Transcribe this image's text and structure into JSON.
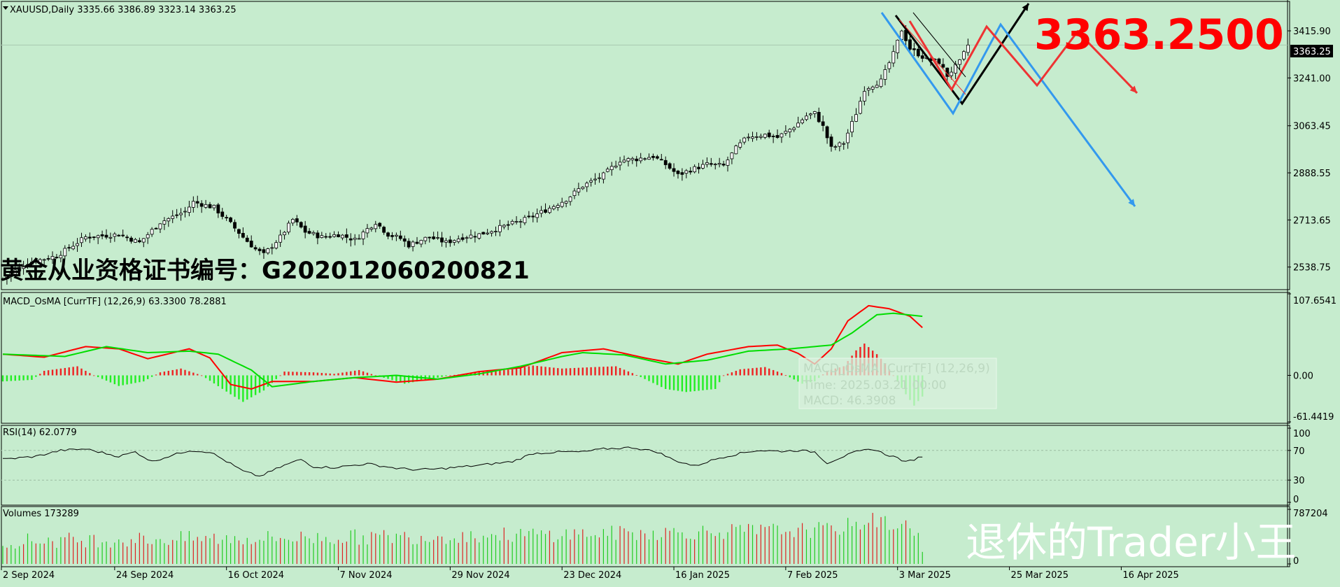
{
  "symbol_header": "XAUUSD,Daily  3335.66 3386.89 3323.14 3363.25",
  "big_price": "3363.2500",
  "certificate": "黄金从业资格证书编号：G202012060200821",
  "watermark": "退休的Trader小王",
  "colors": {
    "background": "#c6ecce",
    "bull_candle": "#ffffff",
    "bear_candle": "#000000",
    "macd_main": "#ff0000",
    "macd_signal": "#00dd00",
    "osma_pos": "#ee2222",
    "osma_neg": "#22ee22",
    "arrow_black": "#000000",
    "arrow_red": "#ee3333",
    "arrow_blue": "#3399ee",
    "big_price": "#ff0000"
  },
  "tooltip": {
    "line1": "MACD_OsMA [CurrTF] (12,26,9)",
    "line2": "Time: 2025.03.21 00:00",
    "line3": "MACD: 46.3908"
  },
  "chart_data": [
    {
      "type": "candlestick",
      "panel": "price",
      "title": "XAUUSD,Daily",
      "last_ohlc": {
        "open": 3335.66,
        "high": 3386.89,
        "low": 3323.14,
        "close": 3363.25
      },
      "current_price_label": "3363.25",
      "y_ticks": [
        "3415.90",
        "3241.00",
        "3063.45",
        "2888.55",
        "2713.65",
        "2538.75"
      ],
      "ylim": [
        2460,
        3520
      ],
      "x_date_labels": [
        "2 Sep 2024",
        "24 Sep 2024",
        "16 Oct 2024",
        "7 Nov 2024",
        "29 Nov 2024",
        "23 Dec 2024",
        "16 Jan 2025",
        "7 Feb 2025",
        "3 Mar 2025",
        "25 Mar 2025",
        "16 Apr 2025"
      ],
      "close_anchors": [
        [
          0,
          2495
        ],
        [
          6,
          2555
        ],
        [
          13,
          2580
        ],
        [
          20,
          2650
        ],
        [
          28,
          2660
        ],
        [
          33,
          2630
        ],
        [
          38,
          2705
        ],
        [
          44,
          2745
        ],
        [
          46,
          2780
        ],
        [
          51,
          2760
        ],
        [
          55,
          2700
        ],
        [
          58,
          2650
        ],
        [
          61,
          2605
        ],
        [
          63,
          2585
        ],
        [
          67,
          2650
        ],
        [
          70,
          2715
        ],
        [
          73,
          2670
        ],
        [
          77,
          2650
        ],
        [
          81,
          2660
        ],
        [
          85,
          2640
        ],
        [
          88,
          2680
        ],
        [
          90,
          2705
        ],
        [
          93,
          2660
        ],
        [
          96,
          2645
        ],
        [
          98,
          2620
        ],
        [
          101,
          2640
        ],
        [
          103,
          2650
        ],
        [
          107,
          2630
        ],
        [
          111,
          2650
        ],
        [
          115,
          2660
        ],
        [
          119,
          2680
        ],
        [
          123,
          2700
        ],
        [
          127,
          2720
        ],
        [
          131,
          2750
        ],
        [
          136,
          2790
        ],
        [
          140,
          2840
        ],
        [
          145,
          2880
        ],
        [
          149,
          2935
        ],
        [
          153,
          2940
        ],
        [
          157,
          2950
        ],
        [
          160,
          2920
        ],
        [
          163,
          2880
        ],
        [
          166,
          2900
        ],
        [
          170,
          2920
        ],
        [
          174,
          2915
        ],
        [
          177,
          2980
        ],
        [
          180,
          3025
        ],
        [
          184,
          3030
        ],
        [
          187,
          3020
        ],
        [
          191,
          3060
        ],
        [
          194,
          3100
        ],
        [
          196,
          3110
        ],
        [
          198,
          3060
        ],
        [
          200,
          2980
        ],
        [
          203,
          3000
        ],
        [
          206,
          3110
        ],
        [
          208,
          3200
        ],
        [
          212,
          3230
        ],
        [
          215,
          3330
        ],
        [
          217,
          3420
        ],
        [
          219,
          3350
        ],
        [
          223,
          3310
        ],
        [
          226,
          3300
        ],
        [
          228,
          3250
        ],
        [
          231,
          3300
        ],
        [
          233,
          3363
        ]
      ]
    },
    {
      "type": "line",
      "panel": "macd",
      "title": "MACD_OsMA [CurrTF] (12,26,9) 63.3300 78.2881",
      "y_ticks": [
        "107.6541",
        "0.00",
        "-61.4419"
      ],
      "ylim": [
        -61.4419,
        107.6541
      ],
      "series": [
        {
          "name": "MACD",
          "anchors": [
            [
              0,
              28
            ],
            [
              10,
              24
            ],
            [
              20,
              38
            ],
            [
              28,
              35
            ],
            [
              35,
              22
            ],
            [
              45,
              35
            ],
            [
              50,
              23
            ],
            [
              55,
              -12
            ],
            [
              60,
              -18
            ],
            [
              65,
              -8
            ],
            [
              75,
              -8
            ],
            [
              85,
              -3
            ],
            [
              95,
              -9
            ],
            [
              105,
              -5
            ],
            [
              115,
              5
            ],
            [
              125,
              10
            ],
            [
              135,
              30
            ],
            [
              145,
              35
            ],
            [
              155,
              23
            ],
            [
              163,
              15
            ],
            [
              170,
              28
            ],
            [
              180,
              38
            ],
            [
              187,
              40
            ],
            [
              192,
              29
            ],
            [
              196,
              15
            ],
            [
              200,
              35
            ],
            [
              204,
              72
            ],
            [
              209,
              92
            ],
            [
              214,
              88
            ],
            [
              219,
              78
            ],
            [
              222,
              63
            ]
          ]
        },
        {
          "name": "Signal",
          "anchors": [
            [
              0,
              28
            ],
            [
              15,
              25
            ],
            [
              25,
              38
            ],
            [
              35,
              30
            ],
            [
              45,
              32
            ],
            [
              52,
              28
            ],
            [
              60,
              7
            ],
            [
              65,
              -15
            ],
            [
              75,
              -8
            ],
            [
              85,
              -3
            ],
            [
              95,
              0
            ],
            [
              105,
              -5
            ],
            [
              115,
              2
            ],
            [
              125,
              12
            ],
            [
              135,
              25
            ],
            [
              140,
              30
            ],
            [
              150,
              27
            ],
            [
              160,
              15
            ],
            [
              170,
              20
            ],
            [
              180,
              32
            ],
            [
              190,
              35
            ],
            [
              200,
              40
            ],
            [
              205,
              56
            ],
            [
              211,
              80
            ],
            [
              215,
              82
            ],
            [
              222,
              78
            ]
          ]
        },
        {
          "name": "OsMA",
          "anchors": [
            [
              0,
              -8
            ],
            [
              7,
              -6
            ],
            [
              10,
              6
            ],
            [
              18,
              12
            ],
            [
              22,
              0
            ],
            [
              28,
              -14
            ],
            [
              34,
              -8
            ],
            [
              38,
              4
            ],
            [
              43,
              9
            ],
            [
              48,
              0
            ],
            [
              55,
              -25
            ],
            [
              58,
              -35
            ],
            [
              63,
              -20
            ],
            [
              68,
              5
            ],
            [
              75,
              4
            ],
            [
              80,
              2
            ],
            [
              86,
              7
            ],
            [
              90,
              0
            ],
            [
              97,
              -11
            ],
            [
              103,
              -5
            ],
            [
              108,
              0
            ],
            [
              115,
              4
            ],
            [
              123,
              8
            ],
            [
              128,
              13
            ],
            [
              135,
              9
            ],
            [
              143,
              11
            ],
            [
              148,
              12
            ],
            [
              152,
              3
            ],
            [
              160,
              -18
            ],
            [
              165,
              -22
            ],
            [
              172,
              -18
            ],
            [
              174,
              0
            ],
            [
              178,
              8
            ],
            [
              184,
              11
            ],
            [
              188,
              3
            ],
            [
              193,
              -11
            ],
            [
              196,
              -8
            ],
            [
              199,
              6
            ],
            [
              203,
              12
            ],
            [
              206,
              33
            ],
            [
              208,
              42
            ],
            [
              211,
              28
            ],
            [
              213,
              16
            ],
            [
              215,
              0
            ],
            [
              218,
              -25
            ],
            [
              220,
              -40
            ],
            [
              222,
              -28
            ]
          ]
        }
      ]
    },
    {
      "type": "line",
      "panel": "rsi",
      "title": "RSI(14) 62.0779",
      "y_ticks": [
        "100",
        "70",
        "30",
        "0"
      ],
      "levels": [
        70,
        30
      ],
      "ylim": [
        0,
        100
      ],
      "anchors": [
        [
          0,
          58
        ],
        [
          8,
          62
        ],
        [
          14,
          70
        ],
        [
          20,
          72
        ],
        [
          28,
          62
        ],
        [
          32,
          68
        ],
        [
          36,
          55
        ],
        [
          40,
          62
        ],
        [
          45,
          70
        ],
        [
          50,
          68
        ],
        [
          55,
          52
        ],
        [
          58,
          42
        ],
        [
          62,
          35
        ],
        [
          68,
          50
        ],
        [
          72,
          58
        ],
        [
          75,
          48
        ],
        [
          80,
          47
        ],
        [
          88,
          52
        ],
        [
          95,
          46
        ],
        [
          100,
          44
        ],
        [
          105,
          45
        ],
        [
          115,
          50
        ],
        [
          123,
          55
        ],
        [
          128,
          66
        ],
        [
          135,
          68
        ],
        [
          140,
          68
        ],
        [
          145,
          72
        ],
        [
          152,
          74
        ],
        [
          158,
          68
        ],
        [
          162,
          57
        ],
        [
          167,
          49
        ],
        [
          173,
          60
        ],
        [
          178,
          66
        ],
        [
          182,
          70
        ],
        [
          188,
          69
        ],
        [
          192,
          70
        ],
        [
          196,
          68
        ],
        [
          199,
          53
        ],
        [
          202,
          60
        ],
        [
          206,
          68
        ],
        [
          210,
          72
        ],
        [
          213,
          65
        ],
        [
          216,
          60
        ],
        [
          218,
          54
        ],
        [
          222,
          62
        ]
      ]
    },
    {
      "type": "bar",
      "panel": "volumes",
      "title": "Volumes 173289",
      "y_ticks": [
        "787204",
        "0"
      ],
      "ylim": [
        0,
        787204
      ],
      "last_value": 173289
    }
  ],
  "projection_lines": [
    "black",
    "red",
    "blue"
  ]
}
